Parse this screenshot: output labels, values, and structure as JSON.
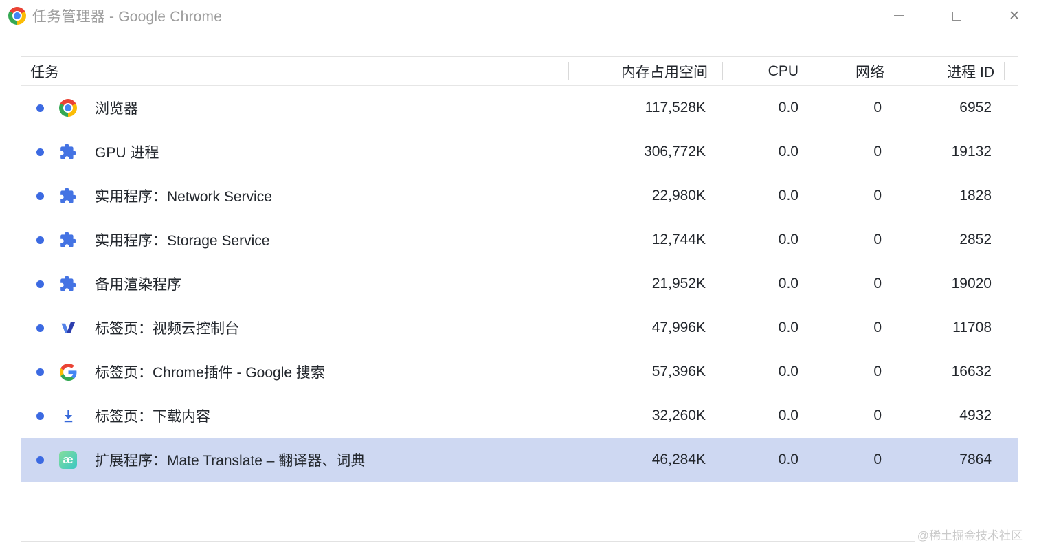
{
  "window": {
    "title": "任务管理器 - Google Chrome"
  },
  "icons": {
    "app_icon": "chrome-logo",
    "mate_badge_text": "æ"
  },
  "table": {
    "columns": [
      {
        "key": "task",
        "label": "任务"
      },
      {
        "key": "memory",
        "label": "内存占用空间"
      },
      {
        "key": "cpu",
        "label": "CPU"
      },
      {
        "key": "network",
        "label": "网络"
      },
      {
        "key": "pid",
        "label": "进程 ID"
      }
    ],
    "rows": [
      {
        "icon": "chrome-icon",
        "task": "浏览器",
        "memory": "117,528K",
        "cpu": "0.0",
        "network": "0",
        "pid": "6952",
        "selected": false
      },
      {
        "icon": "extension-puzzle-icon",
        "task": "GPU 进程",
        "memory": "306,772K",
        "cpu": "0.0",
        "network": "0",
        "pid": "19132",
        "selected": false
      },
      {
        "icon": "extension-puzzle-icon",
        "task": "实用程序：Network Service",
        "memory": "22,980K",
        "cpu": "0.0",
        "network": "0",
        "pid": "1828",
        "selected": false
      },
      {
        "icon": "extension-puzzle-icon",
        "task": "实用程序：Storage Service",
        "memory": "12,744K",
        "cpu": "0.0",
        "network": "0",
        "pid": "2852",
        "selected": false
      },
      {
        "icon": "extension-puzzle-icon",
        "task": "备用渲染程序",
        "memory": "21,952K",
        "cpu": "0.0",
        "network": "0",
        "pid": "19020",
        "selected": false
      },
      {
        "icon": "v-logo-icon",
        "task": "标签页：视频云控制台",
        "memory": "47,996K",
        "cpu": "0.0",
        "network": "0",
        "pid": "11708",
        "selected": false
      },
      {
        "icon": "google-g-icon",
        "task": "标签页：Chrome插件 - Google 搜索",
        "memory": "57,396K",
        "cpu": "0.0",
        "network": "0",
        "pid": "16632",
        "selected": false
      },
      {
        "icon": "download-icon",
        "task": "标签页：下载内容",
        "memory": "32,260K",
        "cpu": "0.0",
        "network": "0",
        "pid": "4932",
        "selected": false
      },
      {
        "icon": "mate-translate-icon",
        "task": "扩展程序：Mate Translate – 翻译器、词典",
        "memory": "46,284K",
        "cpu": "0.0",
        "network": "0",
        "pid": "7864",
        "selected": true
      }
    ]
  },
  "watermark": "@稀土掘金技术社区",
  "colors": {
    "accent_blue": "#3c6ae2",
    "selected_row": "#ced8f2",
    "title_gray": "#9d9d9d",
    "text": "#23272d",
    "border": "#e2e2e2",
    "mate_gradient_start": "#85de9c",
    "mate_gradient_end": "#3ac7c4"
  }
}
